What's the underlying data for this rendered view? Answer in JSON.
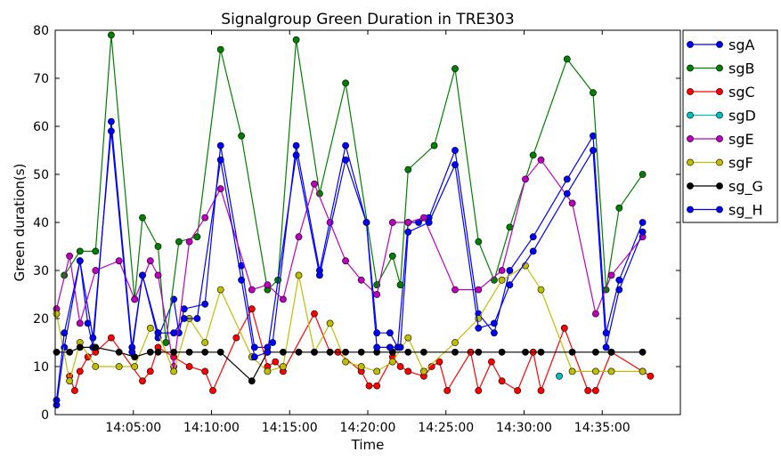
{
  "chart_data": {
    "type": "line",
    "title": "Signalgroup Green Duration in TRE303",
    "xlabel": "Time",
    "ylabel": "Green duration(s)",
    "ylim": [
      0,
      80
    ],
    "yticks": [
      0,
      10,
      20,
      30,
      40,
      50,
      60,
      70,
      80
    ],
    "xlim": [
      "14:00:00",
      "14:40:00"
    ],
    "xticks": [
      "14:05:00",
      "14:10:00",
      "14:15:00",
      "14:20:00",
      "14:25:00",
      "14:30:00",
      "14:35:00"
    ],
    "grid": false,
    "legend_position": "right, outside plot area",
    "series": [
      {
        "name": "sgA",
        "color": "#0000ff",
        "points": [
          [
            "14:00:05",
            2
          ],
          [
            "14:00:35",
            14
          ],
          [
            "14:01:35",
            32
          ],
          [
            "14:02:05",
            19
          ],
          [
            "14:02:25",
            14
          ],
          [
            "14:03:35",
            61
          ],
          [
            "14:04:55",
            14
          ],
          [
            "14:05:35",
            29
          ],
          [
            "14:06:35",
            16
          ],
          [
            "14:07:35",
            24
          ],
          [
            "14:07:55",
            17
          ],
          [
            "14:08:15",
            22
          ],
          [
            "14:09:35",
            23
          ],
          [
            "14:10:35",
            56
          ],
          [
            "14:11:55",
            31
          ],
          [
            "14:12:45",
            14
          ],
          [
            "14:13:35",
            14
          ],
          [
            "14:13:55",
            15
          ],
          [
            "14:15:25",
            56
          ],
          [
            "14:16:55",
            30
          ],
          [
            "14:18:35",
            56
          ],
          [
            "14:19:55",
            40
          ],
          [
            "14:20:35",
            17
          ],
          [
            "14:21:25",
            17
          ],
          [
            "14:21:55",
            14
          ],
          [
            "14:22:35",
            40
          ],
          [
            "14:23:15",
            40
          ],
          [
            "14:23:55",
            41
          ],
          [
            "14:25:35",
            55
          ],
          [
            "14:27:05",
            21
          ],
          [
            "14:28:05",
            17
          ],
          [
            "14:29:05",
            30
          ],
          [
            "14:30:35",
            37
          ],
          [
            "14:32:45",
            49
          ],
          [
            "14:34:25",
            58
          ],
          [
            "14:35:15",
            17
          ],
          [
            "14:36:05",
            28
          ],
          [
            "14:37:35",
            40
          ]
        ]
      },
      {
        "name": "sgB",
        "color": "#008000",
        "points": [
          [
            "14:00:35",
            29
          ],
          [
            "14:01:35",
            34
          ],
          [
            "14:02:35",
            34
          ],
          [
            "14:03:35",
            79
          ],
          [
            "14:05:05",
            24
          ],
          [
            "14:05:35",
            41
          ],
          [
            "14:06:35",
            35
          ],
          [
            "14:07:05",
            15
          ],
          [
            "14:07:55",
            36
          ],
          [
            "14:09:05",
            37
          ],
          [
            "14:10:35",
            76
          ],
          [
            "14:11:55",
            58
          ],
          [
            "14:13:35",
            26
          ],
          [
            "14:14:15",
            28
          ],
          [
            "14:15:25",
            78
          ],
          [
            "14:16:55",
            46
          ],
          [
            "14:18:35",
            69
          ],
          [
            "14:20:35",
            27
          ],
          [
            "14:21:35",
            33
          ],
          [
            "14:22:05",
            27
          ],
          [
            "14:22:35",
            51
          ],
          [
            "14:24:15",
            56
          ],
          [
            "14:25:35",
            72
          ],
          [
            "14:27:05",
            36
          ],
          [
            "14:28:05",
            28
          ],
          [
            "14:29:05",
            39
          ],
          [
            "14:30:35",
            54
          ],
          [
            "14:32:45",
            74
          ],
          [
            "14:34:25",
            67
          ],
          [
            "14:35:15",
            26
          ],
          [
            "14:36:05",
            43
          ],
          [
            "14:37:35",
            50
          ]
        ]
      },
      {
        "name": "sgC",
        "color": "#ff0000",
        "points": [
          [
            "14:00:55",
            8
          ],
          [
            "14:01:15",
            5
          ],
          [
            "14:01:35",
            9
          ],
          [
            "14:02:05",
            12
          ],
          [
            "14:02:35",
            13
          ],
          [
            "14:03:35",
            16
          ],
          [
            "14:05:35",
            7
          ],
          [
            "14:06:05",
            9
          ],
          [
            "14:06:35",
            14
          ],
          [
            "14:07:35",
            12
          ],
          [
            "14:08:35",
            10
          ],
          [
            "14:09:35",
            9
          ],
          [
            "14:10:05",
            5
          ],
          [
            "14:11:35",
            16
          ],
          [
            "14:12:35",
            22
          ],
          [
            "14:13:35",
            10
          ],
          [
            "14:14:05",
            11
          ],
          [
            "14:14:35",
            9
          ],
          [
            "14:16:35",
            21
          ],
          [
            "14:17:35",
            13
          ],
          [
            "14:18:05",
            13
          ],
          [
            "14:19:35",
            9
          ],
          [
            "14:20:05",
            6
          ],
          [
            "14:20:35",
            6
          ],
          [
            "14:21:35",
            12
          ],
          [
            "14:22:05",
            10
          ],
          [
            "14:22:35",
            9
          ],
          [
            "14:23:35",
            8
          ],
          [
            "14:24:05",
            10
          ],
          [
            "14:24:35",
            11
          ],
          [
            "14:25:05",
            5
          ],
          [
            "14:26:35",
            13
          ],
          [
            "14:27:05",
            5
          ],
          [
            "14:27:55",
            11
          ],
          [
            "14:28:35",
            7
          ],
          [
            "14:29:35",
            5
          ],
          [
            "14:30:35",
            13
          ],
          [
            "14:31:05",
            5
          ],
          [
            "14:32:35",
            18
          ],
          [
            "14:34:05",
            5
          ],
          [
            "14:34:35",
            5
          ],
          [
            "14:35:35",
            13
          ],
          [
            "14:37:35",
            9
          ],
          [
            "14:38:05",
            8
          ]
        ]
      },
      {
        "name": "sgD",
        "color": "#00bfbf",
        "points": [
          [
            "14:32:15",
            8
          ]
        ]
      },
      {
        "name": "sgE",
        "color": "#bf00bf",
        "points": [
          [
            "14:00:05",
            22
          ],
          [
            "14:00:55",
            33
          ],
          [
            "14:01:35",
            19
          ],
          [
            "14:02:35",
            30
          ],
          [
            "14:04:05",
            32
          ],
          [
            "14:05:05",
            24
          ],
          [
            "14:06:05",
            32
          ],
          [
            "14:06:35",
            29
          ],
          [
            "14:07:35",
            10
          ],
          [
            "14:08:35",
            36
          ],
          [
            "14:09:35",
            41
          ],
          [
            "14:10:35",
            47
          ],
          [
            "14:12:35",
            26
          ],
          [
            "14:13:35",
            27
          ],
          [
            "14:14:35",
            24
          ],
          [
            "14:15:35",
            37
          ],
          [
            "14:16:35",
            48
          ],
          [
            "14:17:35",
            40
          ],
          [
            "14:18:35",
            32
          ],
          [
            "14:19:35",
            28
          ],
          [
            "14:20:35",
            25
          ],
          [
            "14:21:35",
            40
          ],
          [
            "14:22:35",
            40
          ],
          [
            "14:23:35",
            41
          ],
          [
            "14:25:35",
            26
          ],
          [
            "14:27:05",
            26
          ],
          [
            "14:28:35",
            30
          ],
          [
            "14:30:05",
            49
          ],
          [
            "14:31:05",
            53
          ],
          [
            "14:33:05",
            44
          ],
          [
            "14:34:35",
            21
          ],
          [
            "14:35:35",
            29
          ],
          [
            "14:37:35",
            37
          ]
        ]
      },
      {
        "name": "sgF",
        "color": "#bfbf00",
        "points": [
          [
            "14:00:05",
            21
          ],
          [
            "14:00:55",
            7
          ],
          [
            "14:01:35",
            15
          ],
          [
            "14:02:35",
            10
          ],
          [
            "14:04:05",
            10
          ],
          [
            "14:05:05",
            10
          ],
          [
            "14:06:05",
            18
          ],
          [
            "14:06:35",
            17
          ],
          [
            "14:07:35",
            9
          ],
          [
            "14:08:35",
            20
          ],
          [
            "14:09:35",
            15
          ],
          [
            "14:10:35",
            26
          ],
          [
            "14:12:35",
            12
          ],
          [
            "14:13:35",
            9
          ],
          [
            "14:14:35",
            10
          ],
          [
            "14:15:35",
            29
          ],
          [
            "14:16:35",
            13
          ],
          [
            "14:17:35",
            19
          ],
          [
            "14:18:35",
            11
          ],
          [
            "14:19:35",
            10
          ],
          [
            "14:20:35",
            9
          ],
          [
            "14:21:35",
            11
          ],
          [
            "14:22:35",
            16
          ],
          [
            "14:23:35",
            9
          ],
          [
            "14:25:35",
            15
          ],
          [
            "14:27:05",
            20
          ],
          [
            "14:28:35",
            28
          ],
          [
            "14:30:05",
            31
          ],
          [
            "14:31:05",
            26
          ],
          [
            "14:33:05",
            9
          ],
          [
            "14:34:35",
            9
          ],
          [
            "14:35:35",
            9
          ],
          [
            "14:37:35",
            9
          ]
        ]
      },
      {
        "name": "sg_G",
        "color": "#000000",
        "points": [
          [
            "14:00:05",
            13
          ],
          [
            "14:00:55",
            13
          ],
          [
            "14:01:35",
            14
          ],
          [
            "14:02:35",
            14
          ],
          [
            "14:04:05",
            13
          ],
          [
            "14:05:05",
            12
          ],
          [
            "14:06:05",
            13
          ],
          [
            "14:06:35",
            13
          ],
          [
            "14:07:35",
            13
          ],
          [
            "14:08:35",
            13
          ],
          [
            "14:09:35",
            13
          ],
          [
            "14:10:35",
            13
          ],
          [
            "14:12:35",
            7
          ],
          [
            "14:13:35",
            13
          ],
          [
            "14:14:35",
            13
          ],
          [
            "14:15:35",
            13
          ],
          [
            "14:16:35",
            13
          ],
          [
            "14:17:35",
            13
          ],
          [
            "14:18:35",
            13
          ],
          [
            "14:19:35",
            13
          ],
          [
            "14:20:35",
            13
          ],
          [
            "14:21:35",
            13
          ],
          [
            "14:22:35",
            13
          ],
          [
            "14:23:35",
            13
          ],
          [
            "14:25:35",
            13
          ],
          [
            "14:27:05",
            13
          ],
          [
            "14:28:35",
            13
          ],
          [
            "14:30:05",
            13
          ],
          [
            "14:31:05",
            13
          ],
          [
            "14:33:05",
            13
          ],
          [
            "14:34:35",
            13
          ],
          [
            "14:35:35",
            13
          ],
          [
            "14:37:35",
            13
          ]
        ]
      },
      {
        "name": "sg_H",
        "color": "#0000ff",
        "points": [
          [
            "14:00:05",
            3
          ],
          [
            "14:00:35",
            17
          ],
          [
            "14:01:35",
            32
          ],
          [
            "14:02:25",
            16
          ],
          [
            "14:03:35",
            59
          ],
          [
            "14:04:55",
            13
          ],
          [
            "14:05:35",
            29
          ],
          [
            "14:06:35",
            17
          ],
          [
            "14:07:35",
            17
          ],
          [
            "14:08:15",
            20
          ],
          [
            "14:09:05",
            20
          ],
          [
            "14:10:35",
            53
          ],
          [
            "14:11:55",
            28
          ],
          [
            "14:12:45",
            12
          ],
          [
            "14:13:35",
            13
          ],
          [
            "14:15:25",
            54
          ],
          [
            "14:16:55",
            29
          ],
          [
            "14:18:35",
            53
          ],
          [
            "14:19:55",
            40
          ],
          [
            "14:20:35",
            14
          ],
          [
            "14:21:25",
            14
          ],
          [
            "14:22:05",
            14
          ],
          [
            "14:22:35",
            38
          ],
          [
            "14:23:55",
            40
          ],
          [
            "14:25:35",
            52
          ],
          [
            "14:27:05",
            18
          ],
          [
            "14:28:05",
            19
          ],
          [
            "14:29:05",
            27
          ],
          [
            "14:30:35",
            34
          ],
          [
            "14:32:45",
            46
          ],
          [
            "14:34:25",
            55
          ],
          [
            "14:35:15",
            14
          ],
          [
            "14:36:05",
            26
          ],
          [
            "14:37:35",
            38
          ]
        ]
      }
    ]
  }
}
